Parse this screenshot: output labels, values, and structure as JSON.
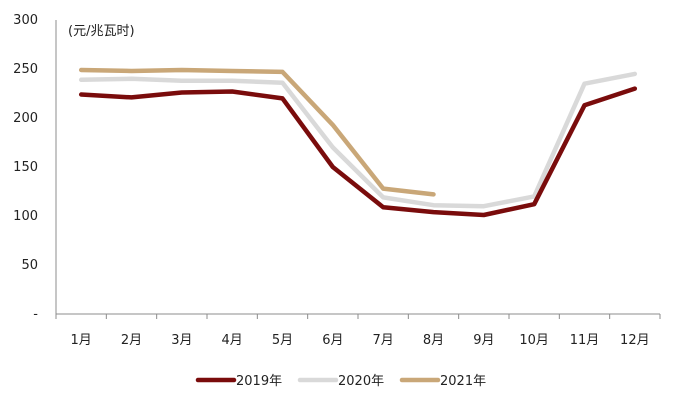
{
  "chart_data": {
    "type": "line",
    "unit_label": "(元/兆瓦时)",
    "categories": [
      "1月",
      "2月",
      "3月",
      "4月",
      "5月",
      "6月",
      "7月",
      "8月",
      "9月",
      "10月",
      "11月",
      "12月"
    ],
    "y_tick_labels": [
      "-",
      "50",
      "100",
      "150",
      "200",
      "250",
      "300"
    ],
    "ylim": [
      0,
      300
    ],
    "grid": false,
    "legend_position": "bottom",
    "series": [
      {
        "name": "2019年",
        "color": "#7a0c0c",
        "values": [
          224,
          221,
          226,
          227,
          220,
          150,
          109,
          104,
          101,
          112,
          213,
          230
        ]
      },
      {
        "name": "2020年",
        "color": "#d9d9d9",
        "values": [
          239,
          240,
          238,
          238,
          236,
          170,
          119,
          111,
          110,
          120,
          235,
          245
        ]
      },
      {
        "name": "2021年",
        "color": "#c9a778",
        "values": [
          249,
          248,
          249,
          248,
          247,
          193,
          128,
          122,
          null,
          null,
          null,
          null
        ]
      }
    ]
  }
}
